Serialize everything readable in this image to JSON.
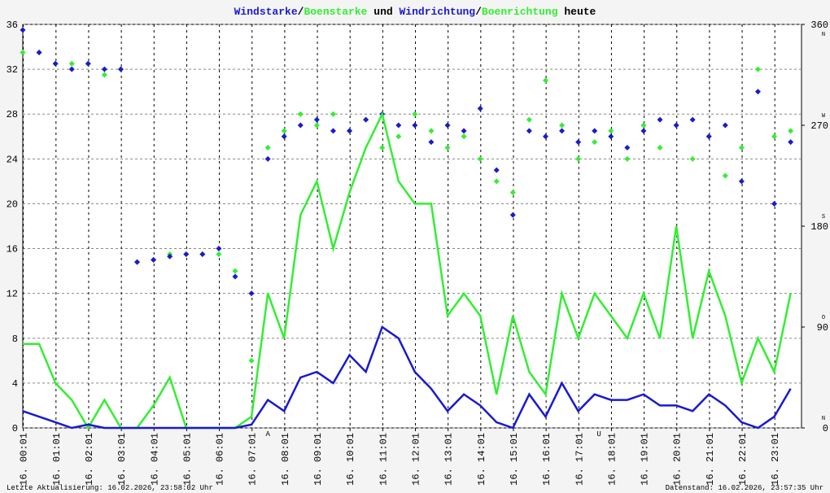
{
  "chart_data": {
    "type": "line",
    "title_connectors": [
      "/",
      " und ",
      "/",
      " heute"
    ],
    "x": [
      "00:00",
      "00:30",
      "01:00",
      "01:30",
      "02:00",
      "02:30",
      "03:00",
      "03:30",
      "04:00",
      "04:30",
      "05:00",
      "05:30",
      "06:00",
      "06:30",
      "07:00",
      "07:30",
      "08:00",
      "08:30",
      "09:00",
      "09:30",
      "10:00",
      "10:30",
      "11:00",
      "11:30",
      "12:00",
      "12:30",
      "13:00",
      "13:30",
      "14:00",
      "14:30",
      "15:00",
      "15:30",
      "16:00",
      "16:30",
      "17:00",
      "17:30",
      "18:00",
      "18:30",
      "19:00",
      "19:30",
      "20:00",
      "20:30",
      "21:00",
      "21:30",
      "22:00",
      "22:30",
      "23:00",
      "23:30"
    ],
    "xlim": [
      "00:00",
      "23:50"
    ],
    "xticks": [
      {
        "value": "00:01",
        "label": "16. 00:01"
      },
      {
        "value": "01:01",
        "label": "16. 01:01"
      },
      {
        "value": "02:01",
        "label": "16. 02:01"
      },
      {
        "value": "03:01",
        "label": "16. 03:01"
      },
      {
        "value": "04:01",
        "label": "16. 04:01"
      },
      {
        "value": "05:01",
        "label": "16. 05:01"
      },
      {
        "value": "06:01",
        "label": "16. 06:01"
      },
      {
        "value": "07:01",
        "label": "16. 07:01"
      },
      {
        "value": "08:01",
        "label": "16. 08:01"
      },
      {
        "value": "09:01",
        "label": "16. 09:01"
      },
      {
        "value": "10:01",
        "label": "16. 10:01"
      },
      {
        "value": "11:01",
        "label": "16. 11:01"
      },
      {
        "value": "12:01",
        "label": "16. 12:01"
      },
      {
        "value": "13:01",
        "label": "16. 13:01"
      },
      {
        "value": "14:01",
        "label": "16. 14:01"
      },
      {
        "value": "15:01",
        "label": "16. 15:01"
      },
      {
        "value": "16:01",
        "label": "16. 16:01"
      },
      {
        "value": "17:01",
        "label": "16. 17:01"
      },
      {
        "value": "18:01",
        "label": "16. 18:01"
      },
      {
        "value": "19:01",
        "label": "16. 19:01"
      },
      {
        "value": "20:01",
        "label": "16. 20:01"
      },
      {
        "value": "21:01",
        "label": "16. 21:01"
      },
      {
        "value": "22:01",
        "label": "16. 22:01"
      },
      {
        "value": "23:01",
        "label": "16. 23:01"
      }
    ],
    "ylim": [
      0,
      36
    ],
    "yticks": [
      0,
      4,
      8,
      12,
      16,
      20,
      24,
      28,
      32,
      36
    ],
    "y2lim": [
      0,
      360
    ],
    "y2ticks": [
      0,
      90,
      180,
      270,
      360
    ],
    "y2tick_letters": [
      "N",
      "O",
      "S",
      "W",
      "N"
    ],
    "grid": true,
    "series": [
      {
        "name": "Windstarke",
        "color": "#1a1ad0",
        "style": "line",
        "values": [
          1.5,
          1,
          0.5,
          0,
          0.3,
          0,
          0,
          0,
          0,
          0,
          0,
          0,
          0,
          0,
          0.3,
          2.5,
          1.5,
          4.5,
          5,
          4,
          6.5,
          5,
          9,
          8,
          5,
          3.5,
          1.5,
          3,
          2,
          0.5,
          0,
          3,
          1,
          4,
          1.5,
          3,
          2.5,
          2.5,
          3,
          2,
          2,
          1.5,
          3,
          2,
          0.5,
          0,
          1,
          3.5
        ]
      },
      {
        "name": "Boenstarke",
        "color": "#33ee33",
        "style": "line",
        "values": [
          7.5,
          7.5,
          4,
          2.5,
          0,
          2.5,
          0,
          0,
          2,
          4.5,
          0,
          0,
          0,
          0,
          1,
          12,
          8,
          19,
          22,
          16,
          21,
          25,
          28,
          22,
          20,
          20,
          10,
          12,
          10,
          3,
          10,
          5,
          3,
          12,
          8,
          12,
          10,
          8,
          12,
          8,
          18,
          8,
          14,
          10,
          4,
          8,
          5,
          12
        ]
      },
      {
        "name": "Windrichtung",
        "color": "#1a1ad0",
        "style": "dots",
        "axis": "y2",
        "values": [
          355,
          335,
          325,
          320,
          325,
          320,
          320,
          148,
          150,
          153,
          155,
          155,
          160,
          135,
          120,
          240,
          260,
          270,
          275,
          265,
          265,
          275,
          280,
          270,
          270,
          255,
          270,
          265,
          285,
          230,
          190,
          265,
          260,
          265,
          255,
          265,
          260,
          250,
          265,
          275,
          270,
          275,
          260,
          270,
          220,
          300,
          200,
          255
        ]
      },
      {
        "name": "Boenrichtung",
        "color": "#33ee33",
        "style": "dots",
        "axis": "y2",
        "values": [
          335,
          335,
          325,
          325,
          325,
          315,
          320,
          148,
          150,
          155,
          155,
          155,
          155,
          140,
          60,
          250,
          265,
          280,
          270,
          280,
          265,
          275,
          250,
          260,
          280,
          265,
          250,
          260,
          240,
          220,
          210,
          275,
          310,
          270,
          240,
          255,
          265,
          240,
          270,
          250,
          270,
          240,
          260,
          225,
          250,
          320,
          260,
          265
        ]
      }
    ],
    "annotations": [
      {
        "text": "A",
        "x": "07:30",
        "color": "#dd0000"
      },
      {
        "text": "U",
        "x": "17:38",
        "color": "#dd0000"
      }
    ],
    "footer_left": "Letzte Aktualisierung: 16.02.2026, 23:58:02 Uhr",
    "footer_right": "Datenstand: 16.02.2026, 23:57:35 Uhr"
  }
}
